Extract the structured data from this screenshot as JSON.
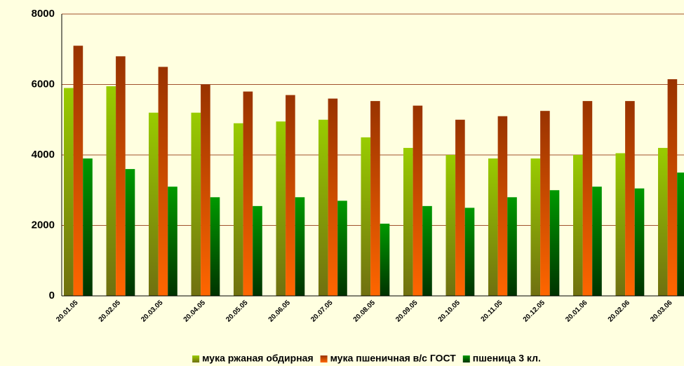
{
  "chart_data": {
    "type": "bar",
    "categories": [
      "20.01.05",
      "20.02.05",
      "20.03.05",
      "20.04.05",
      "20.05.05",
      "20.06.05",
      "20.07.05",
      "20.08.05",
      "20.09.05",
      "20.10.05",
      "20.11.05",
      "20.12.05",
      "20.01.06",
      "20.02.06",
      "20.03.06"
    ],
    "series": [
      {
        "name": "мука ржаная обдирная",
        "color": "#99cc00",
        "gradient_to": "#707010",
        "values": [
          5900,
          5950,
          5200,
          5200,
          4900,
          4950,
          5000,
          4500,
          4200,
          4000,
          3900,
          3900,
          4000,
          4050,
          4200
        ]
      },
      {
        "name": "мука пшеничная в/с ГОСТ",
        "color": "#993300",
        "gradient_to": "#ff6600",
        "values": [
          7100,
          6800,
          6500,
          6000,
          5800,
          5700,
          5600,
          5530,
          5400,
          5000,
          5100,
          5250,
          5530,
          5530,
          6150
        ]
      },
      {
        "name": "пшеница 3 кл.",
        "color": "#009900",
        "gradient_to": "#003300",
        "values": [
          3900,
          3600,
          3100,
          2800,
          2550,
          2800,
          2700,
          2050,
          2550,
          2500,
          2800,
          3000,
          3100,
          3050,
          3500
        ]
      }
    ],
    "ylim": [
      0,
      8000
    ],
    "yticks": [
      0,
      2000,
      4000,
      6000,
      8000
    ],
    "grid": true,
    "legend": "bottom"
  }
}
